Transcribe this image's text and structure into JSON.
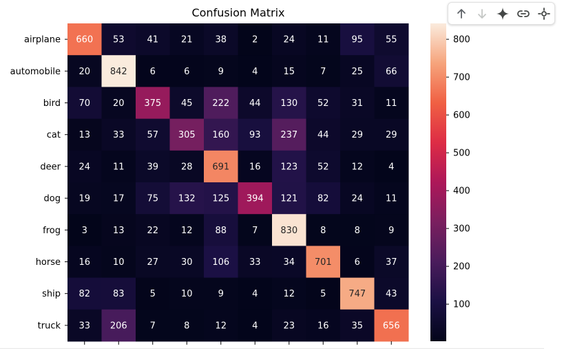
{
  "toolbar": {
    "icons": [
      "arrow-up-icon",
      "arrow-down-icon",
      "sparkle-icon",
      "link-icon",
      "settings-icon"
    ]
  },
  "chart_data": {
    "type": "heatmap",
    "title": "Confusion Matrix",
    "row_labels": [
      "airplane",
      "automobile",
      "bird",
      "cat",
      "deer",
      "dog",
      "frog",
      "horse",
      "ship",
      "truck"
    ],
    "matrix": [
      [
        660,
        53,
        41,
        21,
        38,
        2,
        24,
        11,
        95,
        55
      ],
      [
        20,
        842,
        6,
        6,
        9,
        4,
        15,
        7,
        25,
        66
      ],
      [
        70,
        20,
        375,
        45,
        222,
        44,
        130,
        52,
        31,
        11
      ],
      [
        13,
        33,
        57,
        305,
        160,
        93,
        237,
        44,
        29,
        29
      ],
      [
        24,
        11,
        39,
        28,
        691,
        16,
        123,
        52,
        12,
        4
      ],
      [
        19,
        17,
        75,
        132,
        125,
        394,
        121,
        82,
        24,
        11
      ],
      [
        3,
        13,
        22,
        12,
        88,
        7,
        830,
        8,
        8,
        9
      ],
      [
        16,
        10,
        27,
        30,
        106,
        33,
        34,
        701,
        6,
        37
      ],
      [
        82,
        83,
        5,
        10,
        9,
        4,
        12,
        5,
        747,
        43
      ],
      [
        33,
        206,
        7,
        8,
        12,
        4,
        23,
        16,
        35,
        656
      ]
    ],
    "colorscale": "rocket",
    "value_range": [
      2,
      842
    ],
    "colorbar_ticks": [
      100,
      200,
      300,
      400,
      500,
      600,
      700,
      800
    ],
    "colorbar_tick_labels": [
      "100",
      "200",
      "300",
      "400",
      "500",
      "600",
      "700",
      "800"
    ]
  }
}
